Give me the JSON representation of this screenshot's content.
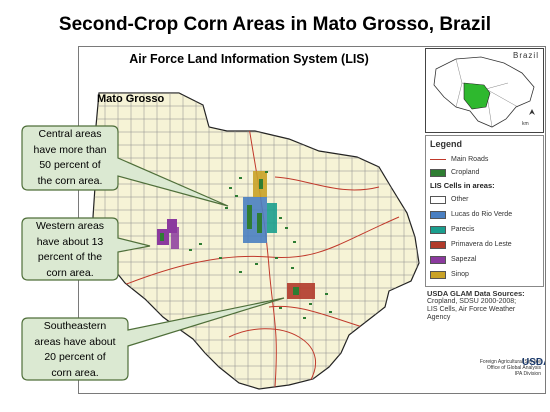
{
  "slide": {
    "title": "Second-Crop Corn Areas in Mato Grosso, Brazil"
  },
  "map": {
    "system_title": "Air Force Land Information System (LIS)",
    "state_label": "Mato Grosso",
    "inset_label": "Brazil",
    "inset_scale": "km",
    "colors": {
      "state_fill": "#f6f3d6",
      "grid": "#8a8a8a",
      "roads": "#c0392b",
      "cropland": "#2e7d32",
      "other": "#ffffff",
      "lucas_do_rio_verde": "#4a7fc1",
      "parecis": "#1b9e8e",
      "primavera_do_leste": "#b13a2a",
      "sapezal": "#8b3a9e",
      "sinop": "#c9a227"
    }
  },
  "legend": {
    "title": "Legend",
    "items": [
      {
        "label": "Main Roads",
        "kind": "line",
        "color": "#c0392b"
      },
      {
        "label": "Cropland",
        "kind": "swatch",
        "color": "#2e7d32"
      }
    ],
    "lis_title": "LIS Cells in areas:",
    "lis_items": [
      {
        "label": "Other",
        "color": "#ffffff"
      },
      {
        "label": "Lucas do Rio Verde",
        "color": "#4a7fc1"
      },
      {
        "label": "Parecis",
        "color": "#1b9e8e"
      },
      {
        "label": "Primavera do Leste",
        "color": "#b13a2a"
      },
      {
        "label": "Sapezal",
        "color": "#8b3a9e"
      },
      {
        "label": "Sinop",
        "color": "#c9a227"
      }
    ]
  },
  "sources": {
    "title": "USDA GLAM Data Sources:",
    "lines": [
      "Cropland, SDSU 2000-2008;",
      "LIS Cells, Air Force Weather",
      "Agency"
    ]
  },
  "agency": {
    "lines": [
      "Foreign Agricultural Service",
      "Office of Global Analysis",
      "IPA Division"
    ],
    "logo": "USDA"
  },
  "callouts": [
    {
      "lines": [
        "Central areas",
        "have more than",
        "50 percent of",
        "the corn area."
      ]
    },
    {
      "lines": [
        "Western areas",
        "have about 13",
        "percent of the",
        "corn area."
      ]
    },
    {
      "lines": [
        "Southeastern",
        "areas have about",
        "20 percent of",
        "corn area."
      ]
    }
  ]
}
